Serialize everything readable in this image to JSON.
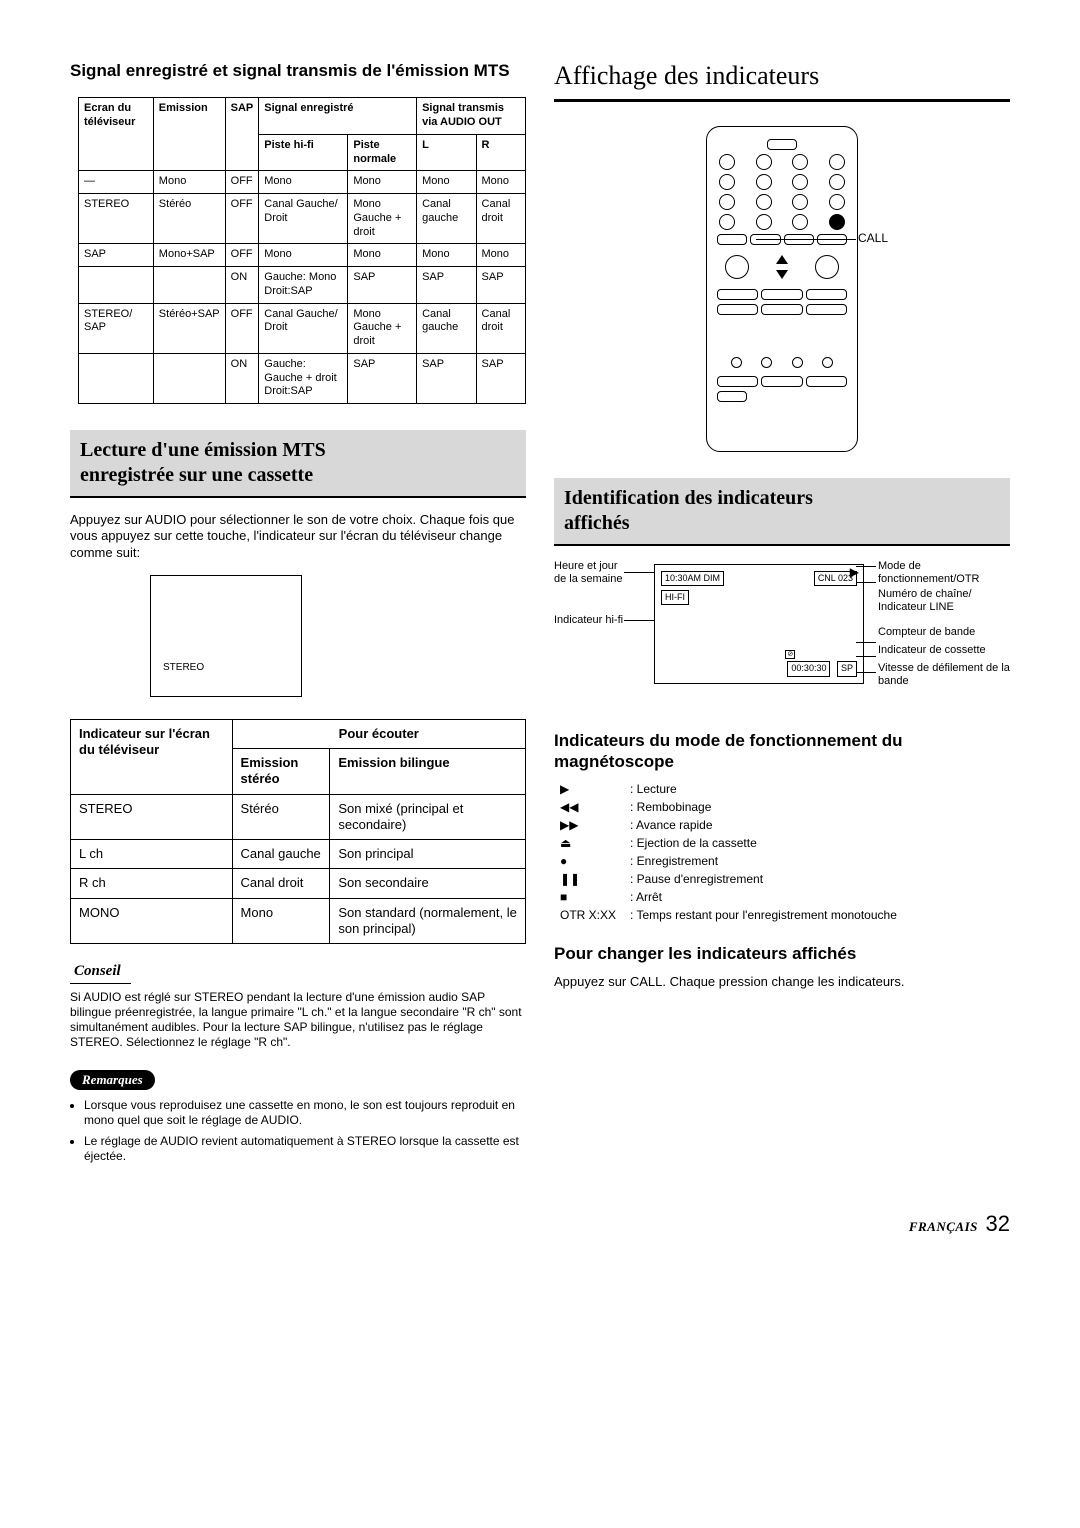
{
  "left": {
    "h_sig": "Signal enregistré et signal transmis de l'émission MTS",
    "table1_headers": {
      "ecran": "Ecran du téléviseur",
      "emission": "Emission",
      "sap": "SAP",
      "sig_e": "Signal enregistré",
      "sig_t": "Signal transmis via AUDIO OUT",
      "piste_hifi": "Piste hi-fi",
      "piste_norm": "Piste normale",
      "L": "L",
      "R": "R"
    },
    "t1": [
      [
        "—",
        "Mono",
        "OFF",
        "Mono",
        "Mono",
        "Mono",
        "Mono"
      ],
      [
        "STEREO",
        "Stéréo",
        "OFF",
        "Canal Gauche/ Droit",
        "Mono Gauche + droit",
        "Canal gauche",
        "Canal droit"
      ],
      [
        "SAP",
        "Mono+SAP",
        "OFF",
        "Mono",
        "Mono",
        "Mono",
        "Mono"
      ],
      [
        "",
        "",
        "ON",
        "Gauche: Mono Droit:SAP",
        "SAP",
        "SAP",
        "SAP"
      ],
      [
        "STEREO/ SAP",
        "Stéréo+SAP",
        "OFF",
        "Canal Gauche/ Droit",
        "Mono Gauche + droit",
        "Canal gauche",
        "Canal droit"
      ],
      [
        "",
        "",
        "ON",
        "Gauche: Gauche + droit Droit:SAP",
        "SAP",
        "SAP",
        "SAP"
      ]
    ],
    "band1_a": "Lecture d'une émission MTS",
    "band1_b": "enregistrée sur une cassette",
    "para1": "Appuyez sur AUDIO pour sélectionner le son de votre choix. Chaque fois que vous appuyez sur cette touche, l'indicateur sur l'écran du téléviseur change comme suit:",
    "tv_stereo": "STEREO",
    "t2h": {
      "ind": "Indicateur sur l'écran du téléviseur",
      "pour": "Pour écouter",
      "es": "Emission stéréo",
      "eb": "Emission bilingue"
    },
    "t2": [
      [
        "STEREO",
        "Stéréo",
        "Son mixé (principal et secondaire)"
      ],
      [
        "L ch",
        "Canal gauche",
        "Son principal"
      ],
      [
        "R ch",
        "Canal droit",
        "Son secondaire"
      ],
      [
        "MONO",
        "Mono",
        "Son standard (normalement, le son principal)"
      ]
    ],
    "conseil": "Conseil",
    "conseil_txt": "Si AUDIO est réglé sur STEREO pendant la lecture d'une émission audio SAP bilingue préenregistrée, la langue primaire \"L ch.\" et la langue secondaire \"R ch\" sont simultanément audibles. Pour la lecture SAP bilingue, n'utilisez pas le réglage STEREO. Sélectionnez le réglage \"R ch\".",
    "remarques": "Remarques",
    "rem": [
      "Lorsque vous reproduisez une cassette en mono, le son est toujours reproduit en mono quel que soit le réglage de AUDIO.",
      "Le réglage de AUDIO revient automatiquement à STEREO lorsque la cassette est éjectée."
    ]
  },
  "right": {
    "title": "Affichage des indicateurs",
    "call": "CALL",
    "band2_a": "Identification des indicateurs",
    "band2_b": "affichés",
    "osd_labels": {
      "heure": "Heure et jour de la semaine",
      "hifi": "Indicateur hi-fi",
      "mode": "Mode de fonctionnement/OTR",
      "chaine": "Numéro de chaîne/ Indicateur LINE",
      "compteur": "Compteur de bande",
      "cassette": "Indicateur de cossette",
      "vitesse": "Vitesse de défilement de la bande"
    },
    "osd_vals": {
      "time": "10:30AM DIM",
      "hifi": "HI-FI",
      "cnl": "CNL 023",
      "counter": "00:30:30",
      "sp": "SP"
    },
    "h_mode": "Indicateurs du mode de fonctionnement du magnétoscope",
    "modes": [
      [
        "▶",
        ": Lecture"
      ],
      [
        "◀◀",
        ": Rembobinage"
      ],
      [
        "▶▶",
        ": Avance rapide"
      ],
      [
        "⏏",
        ": Ejection de la cassette"
      ],
      [
        "●",
        ": Enregistrement"
      ],
      [
        "❚❚",
        ": Pause d'enregistrement"
      ],
      [
        "■",
        ": Arrêt"
      ],
      [
        "OTR X:XX",
        ": Temps restant pour l'enregistrement monotouche"
      ]
    ],
    "h_change": "Pour changer les indicateurs affichés",
    "change_txt": "Appuyez sur CALL. Chaque pression change les indicateurs.",
    "footer_fr": "FRANÇAIS",
    "page": "32"
  }
}
